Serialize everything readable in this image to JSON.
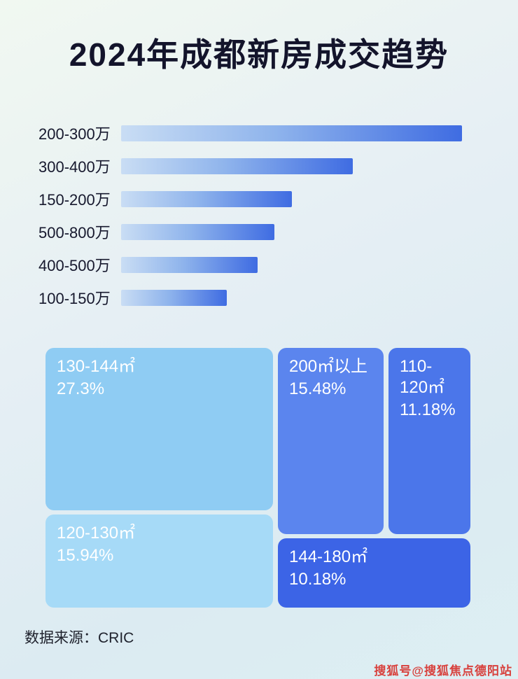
{
  "title": "2024年成都新房成交趋势",
  "footer": {
    "source": "数据来源：CRIC"
  },
  "watermark": "搜狐号@搜狐焦点德阳站",
  "colors": {
    "title_text": "#13142b",
    "bar_gradient_start": "#c9ddf4",
    "bar_gradient_end": "#3f6ce2",
    "watermark_red": "#d8403c"
  },
  "chart_data": [
    {
      "type": "bar",
      "orientation": "horizontal",
      "title": "价格段成交分布（按条形长度排序，无数值轴）",
      "categories": [
        "200-300万",
        "300-400万",
        "150-200万",
        "500-800万",
        "400-500万",
        "100-150万"
      ],
      "values": [
        100,
        68,
        50,
        45,
        40,
        31
      ],
      "value_note": "relative bar length, % of longest bar (no axis labels shown)",
      "grid": false,
      "legend": false
    },
    {
      "type": "treemap",
      "title": "户型面积段成交占比",
      "items": [
        {
          "label": "130-144㎡",
          "value": 27.3,
          "display": "27.3%",
          "color": "#8fccf3"
        },
        {
          "label": "200㎡以上",
          "value": 15.48,
          "display": "15.48%",
          "color": "#5b85ee"
        },
        {
          "label": "110-120㎡",
          "value": 11.18,
          "display": "11.18%",
          "color": "#4b76ea"
        },
        {
          "label": "120-130㎡",
          "value": 15.94,
          "display": "15.94%",
          "color": "#a6daf7"
        },
        {
          "label": "144-180㎡",
          "value": 10.18,
          "display": "10.18%",
          "color": "#3c64e6"
        }
      ]
    }
  ]
}
